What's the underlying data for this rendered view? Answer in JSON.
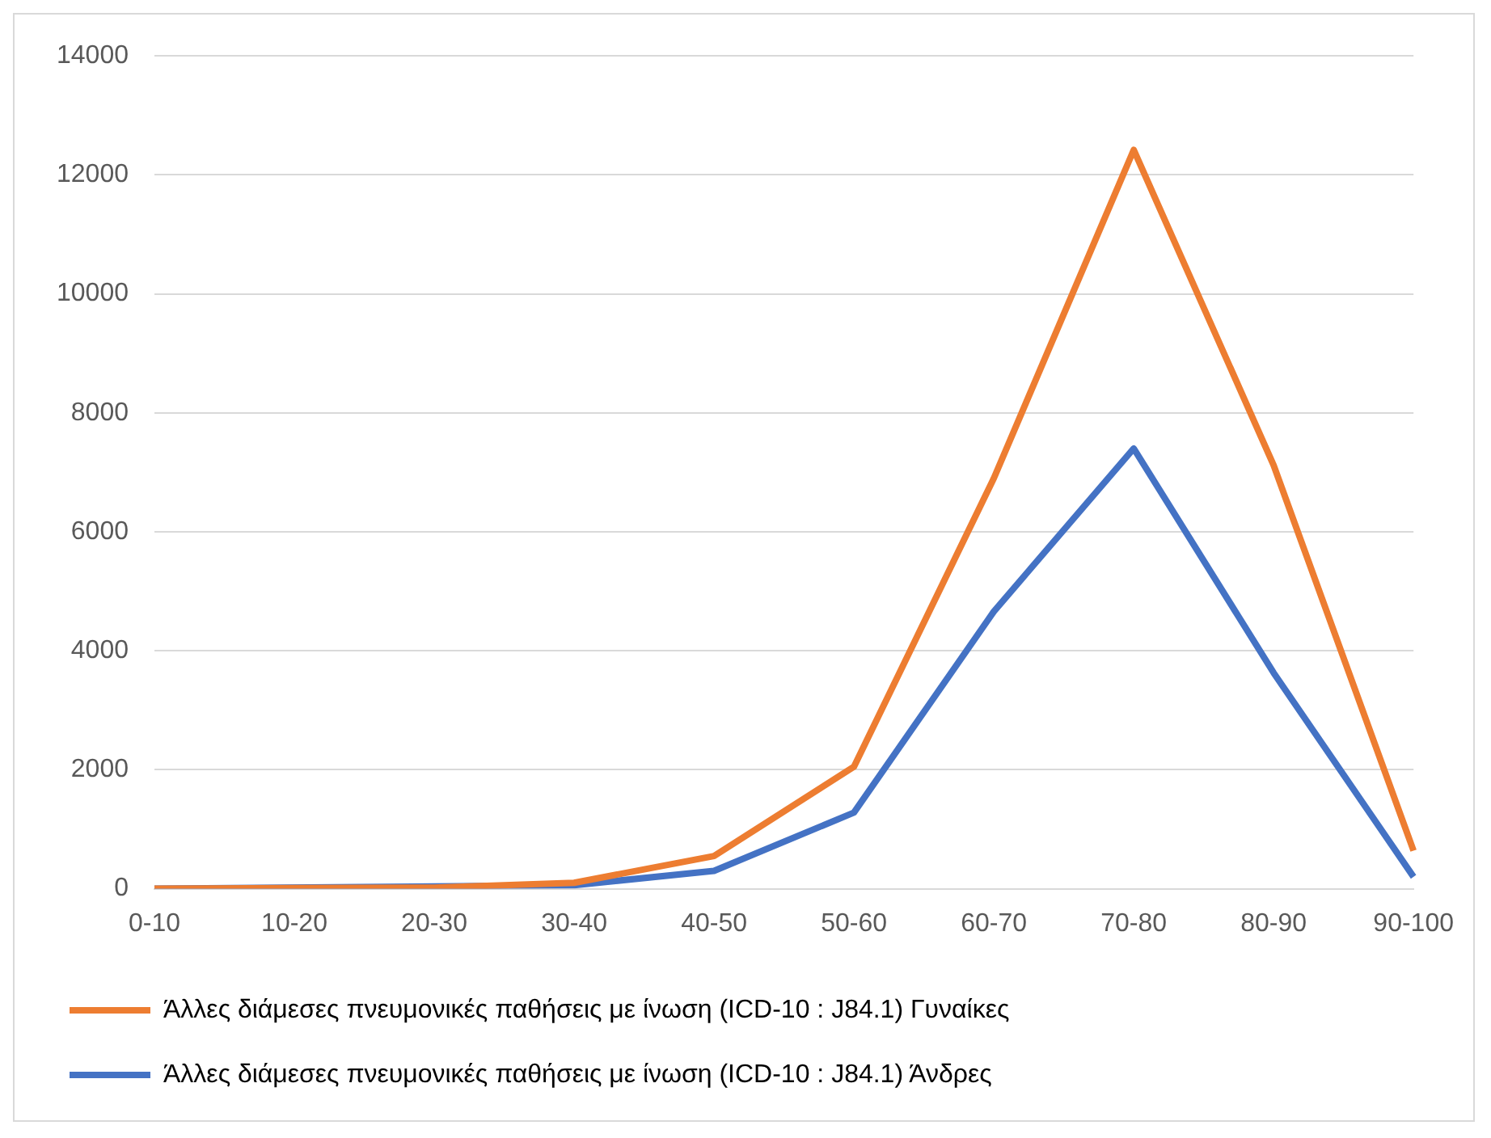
{
  "chart_data": {
    "type": "line",
    "categories": [
      "0-10",
      "10-20",
      "20-30",
      "30-40",
      "40-50",
      "50-60",
      "60-70",
      "70-80",
      "80-90",
      "90-100"
    ],
    "series": [
      {
        "name": "Άλλες διάμεσες πνευμονικές παθήσεις με ίνωση (ICD-10 : J84.1) Γυναίκες",
        "color": "#ed7d31",
        "values": [
          0,
          10,
          20,
          100,
          550,
          2050,
          6900,
          12420,
          7120,
          640
        ]
      },
      {
        "name": "Άλλες διάμεσες πνευμονικές παθήσεις με ίνωση (ICD-10 : J84.1) Άνδρες",
        "color": "#4472c4",
        "values": [
          0,
          null,
          null,
          60,
          300,
          1280,
          4660,
          7400,
          3630,
          200
        ]
      }
    ],
    "ylim": [
      0,
      14000
    ],
    "yticks": [
      0,
      2000,
      4000,
      6000,
      8000,
      10000,
      12000,
      14000
    ],
    "grid": "y",
    "legend": "bottom",
    "marker": "none",
    "line_style": "solid"
  }
}
